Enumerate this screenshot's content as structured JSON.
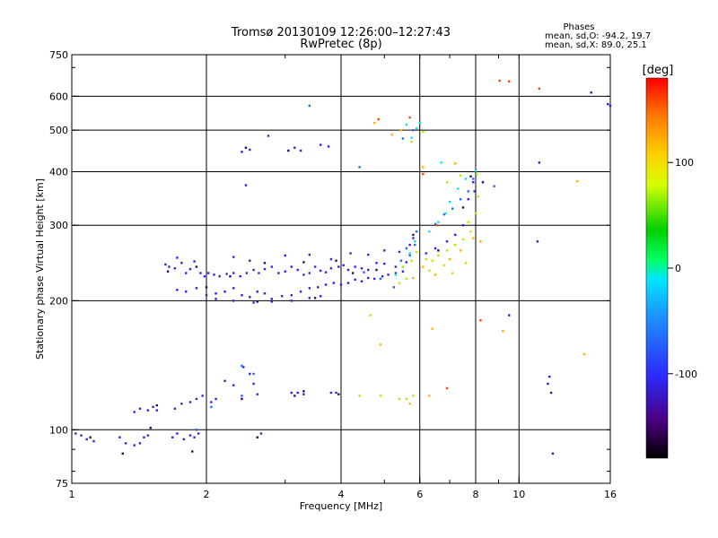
{
  "chart_data": {
    "type": "scatter",
    "title": "Tromsø 20130109 12:26:00–12:27:43",
    "subtitle": "RwPretec (8p)",
    "xlabel": "Frequency [MHz]",
    "ylabel": "Stationary phase Virtual Height [km]",
    "x_scale": "log",
    "y_scale": "log",
    "xlim": [
      1,
      16
    ],
    "ylim": [
      75,
      750
    ],
    "x_ticks": [
      1,
      2,
      4,
      6,
      8,
      10,
      16
    ],
    "y_ticks": [
      75,
      100,
      200,
      300,
      400,
      500,
      600,
      750
    ],
    "x_grid": [
      2,
      4,
      6,
      8,
      10
    ],
    "y_grid": [
      100,
      200,
      300,
      400,
      500,
      600
    ],
    "grid": true,
    "phase_stats": {
      "heading": "Phases",
      "line_o": "mean, sd,O: -94.2, 19.7",
      "line_x": "mean, sd,X:  89.0, 25.1"
    },
    "colorbar": {
      "label": "[deg]",
      "range": [
        -180,
        180
      ],
      "ticks": [
        100,
        0,
        -100
      ],
      "placement": "right"
    },
    "series": [
      {
        "phase": -110,
        "points": [
          [
            1.02,
            98
          ],
          [
            1.05,
            97
          ],
          [
            1.08,
            95
          ],
          [
            1.12,
            94
          ],
          [
            1.28,
            96
          ],
          [
            1.32,
            93
          ],
          [
            1.38,
            92
          ],
          [
            1.42,
            93
          ],
          [
            1.45,
            96
          ],
          [
            1.48,
            97
          ],
          [
            1.38,
            110
          ],
          [
            1.42,
            112
          ],
          [
            1.48,
            111
          ],
          [
            1.52,
            113
          ],
          [
            1.55,
            111
          ],
          [
            1.68,
            96
          ],
          [
            1.72,
            98
          ],
          [
            1.78,
            95
          ],
          [
            1.84,
            97
          ],
          [
            1.88,
            96
          ],
          [
            1.92,
            98
          ],
          [
            1.7,
            112
          ],
          [
            1.76,
            115
          ],
          [
            1.84,
            116
          ],
          [
            1.9,
            118
          ],
          [
            1.96,
            120
          ],
          [
            2.05,
            116
          ],
          [
            2.1,
            118
          ],
          [
            2.2,
            130
          ],
          [
            2.3,
            127
          ],
          [
            2.42,
            140
          ],
          [
            2.5,
            135
          ],
          [
            2.55,
            128
          ],
          [
            2.6,
            121
          ],
          [
            2.65,
            98
          ],
          [
            3.1,
            122
          ],
          [
            3.2,
            122
          ],
          [
            3.3,
            121
          ],
          [
            3.8,
            122
          ],
          [
            3.9,
            122
          ],
          [
            1.62,
            243
          ],
          [
            1.65,
            240
          ],
          [
            1.7,
            238
          ],
          [
            1.72,
            252
          ],
          [
            1.76,
            245
          ],
          [
            1.8,
            232
          ],
          [
            1.84,
            237
          ],
          [
            1.88,
            247
          ],
          [
            1.94,
            232
          ],
          [
            1.98,
            228
          ],
          [
            2.02,
            232
          ],
          [
            2.08,
            230
          ],
          [
            2.14,
            228
          ],
          [
            2.22,
            231
          ],
          [
            2.3,
            232
          ],
          [
            2.38,
            228
          ],
          [
            2.46,
            232
          ],
          [
            2.55,
            236
          ],
          [
            2.62,
            232
          ],
          [
            2.7,
            237
          ],
          [
            2.8,
            240
          ],
          [
            2.9,
            232
          ],
          [
            3.0,
            234
          ],
          [
            3.1,
            240
          ],
          [
            3.2,
            236
          ],
          [
            3.3,
            230
          ],
          [
            3.4,
            232
          ],
          [
            3.5,
            240
          ],
          [
            3.6,
            235
          ],
          [
            3.7,
            233
          ],
          [
            3.8,
            238
          ],
          [
            3.95,
            240
          ],
          [
            4.05,
            242
          ],
          [
            4.15,
            236
          ],
          [
            4.3,
            240
          ],
          [
            4.45,
            238
          ],
          [
            4.6,
            236
          ],
          [
            4.8,
            245
          ],
          [
            5.0,
            244
          ],
          [
            5.3,
            240
          ],
          [
            5.6,
            246
          ],
          [
            2.3,
            253
          ],
          [
            2.5,
            248
          ],
          [
            3.0,
            255
          ],
          [
            3.4,
            256
          ],
          [
            3.8,
            250
          ],
          [
            4.2,
            258
          ],
          [
            4.6,
            256
          ],
          [
            5.0,
            262
          ],
          [
            5.4,
            260
          ],
          [
            5.7,
            270
          ],
          [
            5.8,
            280
          ],
          [
            1.72,
            212
          ],
          [
            1.8,
            210
          ],
          [
            1.9,
            214
          ],
          [
            2.0,
            206
          ],
          [
            2.1,
            208
          ],
          [
            2.2,
            210
          ],
          [
            2.3,
            214
          ],
          [
            2.4,
            206
          ],
          [
            2.5,
            204
          ],
          [
            2.6,
            210
          ],
          [
            2.7,
            208
          ],
          [
            2.8,
            202
          ],
          [
            2.95,
            205
          ],
          [
            3.1,
            206
          ],
          [
            3.25,
            210
          ],
          [
            3.4,
            214
          ],
          [
            3.55,
            215
          ],
          [
            3.7,
            218
          ],
          [
            3.85,
            220
          ],
          [
            4.0,
            218
          ],
          [
            4.15,
            220
          ],
          [
            4.3,
            224
          ],
          [
            4.45,
            222
          ],
          [
            4.6,
            226
          ],
          [
            4.75,
            225
          ],
          [
            4.95,
            228
          ],
          [
            5.1,
            230
          ],
          [
            5.3,
            232
          ],
          [
            5.5,
            234
          ],
          [
            2.1,
            202
          ],
          [
            2.3,
            200
          ],
          [
            2.55,
            198
          ],
          [
            2.8,
            199
          ],
          [
            3.1,
            200
          ],
          [
            3.4,
            203
          ],
          [
            3.6,
            205
          ],
          [
            2.4,
            445
          ],
          [
            2.5,
            450
          ],
          [
            3.15,
            455
          ],
          [
            3.25,
            448
          ],
          [
            3.6,
            462
          ],
          [
            3.75,
            458
          ],
          [
            2.45,
            372
          ],
          [
            7.9,
            378
          ],
          [
            7.7,
            345
          ],
          [
            7.5,
            300
          ],
          [
            7.2,
            285
          ],
          [
            6.9,
            275
          ],
          [
            6.5,
            265
          ],
          [
            6.2,
            258
          ],
          [
            7.95,
            360
          ],
          [
            2.75,
            485
          ]
        ]
      },
      {
        "phase": -150,
        "points": [
          [
            1.1,
            96
          ],
          [
            1.3,
            88
          ],
          [
            1.5,
            101
          ],
          [
            1.86,
            89
          ],
          [
            2.6,
            96
          ],
          [
            1.55,
            114
          ],
          [
            2.4,
            118
          ],
          [
            3.15,
            120
          ],
          [
            3.3,
            123
          ],
          [
            3.95,
            121
          ],
          [
            1.64,
            234
          ],
          [
            1.9,
            240
          ],
          [
            2.26,
            228
          ],
          [
            2.7,
            245
          ],
          [
            3.3,
            246
          ],
          [
            3.9,
            248
          ],
          [
            4.25,
            232
          ],
          [
            2.0,
            215
          ],
          [
            2.6,
            199
          ],
          [
            3.5,
            203
          ],
          [
            4.8,
            236
          ],
          [
            5.8,
            285
          ],
          [
            7.8,
            390
          ],
          [
            8.3,
            378
          ],
          [
            2.45,
            455
          ],
          [
            3.05,
            448
          ],
          [
            7.5,
            330
          ],
          [
            6.6,
            262
          ]
        ]
      },
      {
        "phase": -70,
        "points": [
          [
            1.9,
            100
          ],
          [
            2.05,
            113
          ],
          [
            2.55,
            135
          ],
          [
            2.4,
            141
          ],
          [
            4.5,
            233
          ],
          [
            4.9,
            225
          ],
          [
            5.25,
            215
          ],
          [
            5.45,
            248
          ],
          [
            5.6,
            265
          ],
          [
            5.7,
            255
          ],
          [
            5.85,
            270
          ],
          [
            5.9,
            290
          ],
          [
            6.5,
            302
          ],
          [
            6.8,
            318
          ],
          [
            7.1,
            328
          ],
          [
            7.4,
            345
          ],
          [
            7.7,
            360
          ],
          [
            7.9,
            385
          ],
          [
            5.5,
            478
          ],
          [
            5.8,
            500
          ],
          [
            4.4,
            410
          ],
          [
            3.4,
            570
          ],
          [
            8.8,
            370
          ],
          [
            2.4,
            120
          ]
        ]
      },
      {
        "phase": -10,
        "points": [
          [
            5.3,
            230
          ],
          [
            5.5,
            240
          ],
          [
            5.7,
            258
          ],
          [
            5.85,
            275
          ],
          [
            6.3,
            290
          ],
          [
            6.6,
            305
          ],
          [
            6.85,
            320
          ],
          [
            7.0,
            340
          ],
          [
            7.3,
            365
          ],
          [
            7.6,
            385
          ],
          [
            8.0,
            402
          ],
          [
            5.6,
            515
          ],
          [
            6.0,
            520
          ],
          [
            5.9,
            505
          ],
          [
            5.75,
            480
          ],
          [
            6.7,
            420
          ]
        ]
      },
      {
        "phase": 70,
        "points": [
          [
            5.5,
            240
          ],
          [
            5.75,
            248
          ],
          [
            5.9,
            260
          ],
          [
            6.2,
            250
          ],
          [
            6.4,
            248
          ],
          [
            6.6,
            255
          ],
          [
            6.9,
            262
          ],
          [
            7.2,
            270
          ],
          [
            7.5,
            278
          ],
          [
            7.8,
            290
          ],
          [
            8.0,
            320
          ],
          [
            8.1,
            350
          ],
          [
            8.05,
            395
          ],
          [
            5.4,
            220
          ],
          [
            5.6,
            225
          ],
          [
            6.3,
            235
          ],
          [
            6.8,
            242
          ],
          [
            7.1,
            232
          ],
          [
            7.6,
            245
          ],
          [
            5.6,
            118
          ],
          [
            5.8,
            120
          ],
          [
            5.4,
            118
          ],
          [
            4.9,
            120
          ],
          [
            4.4,
            120
          ],
          [
            6.1,
            495
          ],
          [
            5.75,
            470
          ],
          [
            7.4,
            392
          ],
          [
            6.9,
            378
          ],
          [
            7.7,
            305
          ],
          [
            4.65,
            185
          ]
        ]
      },
      {
        "phase": 120,
        "points": [
          [
            5.8,
            226
          ],
          [
            6.1,
            240
          ],
          [
            6.5,
            230
          ],
          [
            7.0,
            250
          ],
          [
            7.4,
            262
          ],
          [
            7.9,
            280
          ],
          [
            8.2,
            275
          ],
          [
            6.3,
            120
          ],
          [
            5.7,
            115
          ],
          [
            4.9,
            158
          ],
          [
            6.4,
            172
          ],
          [
            5.2,
            488
          ],
          [
            5.45,
            500
          ],
          [
            9.2,
            170
          ],
          [
            4.75,
            520
          ],
          [
            7.2,
            418
          ],
          [
            6.1,
            410
          ],
          [
            13.5,
            380
          ],
          [
            14.0,
            150
          ]
        ]
      },
      {
        "phase": 160,
        "points": [
          [
            4.85,
            530
          ],
          [
            6.9,
            125
          ],
          [
            8.2,
            180
          ],
          [
            9.05,
            652
          ],
          [
            9.5,
            650
          ],
          [
            11.1,
            625
          ],
          [
            5.7,
            535
          ],
          [
            6.1,
            395
          ],
          [
            6.55,
            300
          ]
        ]
      },
      {
        "phase": -120,
        "points": [
          [
            9.5,
            185
          ],
          [
            11.1,
            420
          ],
          [
            11.0,
            275
          ],
          [
            11.7,
            133
          ],
          [
            11.6,
            128
          ],
          [
            11.8,
            122
          ],
          [
            11.9,
            88
          ],
          [
            14.5,
            612
          ],
          [
            15.8,
            575
          ],
          [
            16.0,
            570
          ]
        ]
      }
    ]
  }
}
